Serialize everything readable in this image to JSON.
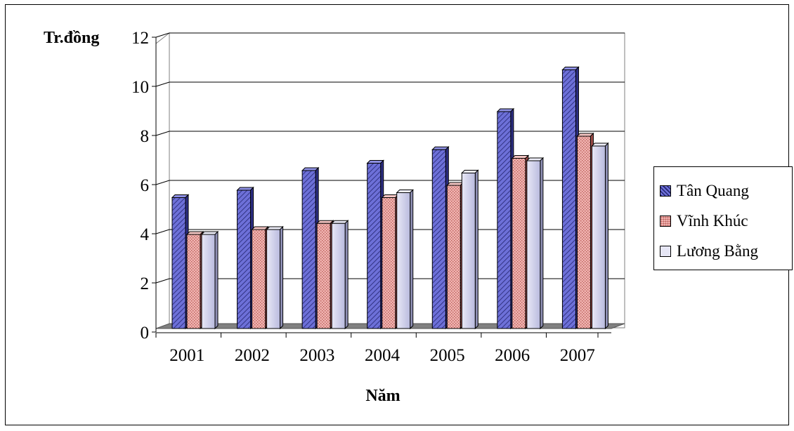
{
  "chart_data": {
    "type": "bar",
    "title": "",
    "xlabel": "Năm",
    "ylabel": "Tr.đồng",
    "ylim": [
      0,
      12
    ],
    "yticks": [
      "0",
      "2",
      "4",
      "6",
      "8",
      "10",
      "12"
    ],
    "categories": [
      "2001",
      "2002",
      "2003",
      "2004",
      "2005",
      "2006",
      "2007"
    ],
    "grid": true,
    "legend_position": "right",
    "series": [
      {
        "name": "Tân Quang",
        "values": [
          5.5,
          5.8,
          6.6,
          6.9,
          7.45,
          9.0,
          10.7
        ],
        "color": "#5b5fd0"
      },
      {
        "name": "Vĩnh Khúc",
        "values": [
          4.0,
          4.2,
          4.45,
          5.5,
          6.0,
          7.1,
          8.0
        ],
        "color": "#e79f9c"
      },
      {
        "name": "Lương Bằng",
        "values": [
          4.0,
          4.2,
          4.45,
          5.7,
          6.5,
          7.0,
          7.6
        ],
        "color": "#cfd0ea"
      }
    ]
  }
}
